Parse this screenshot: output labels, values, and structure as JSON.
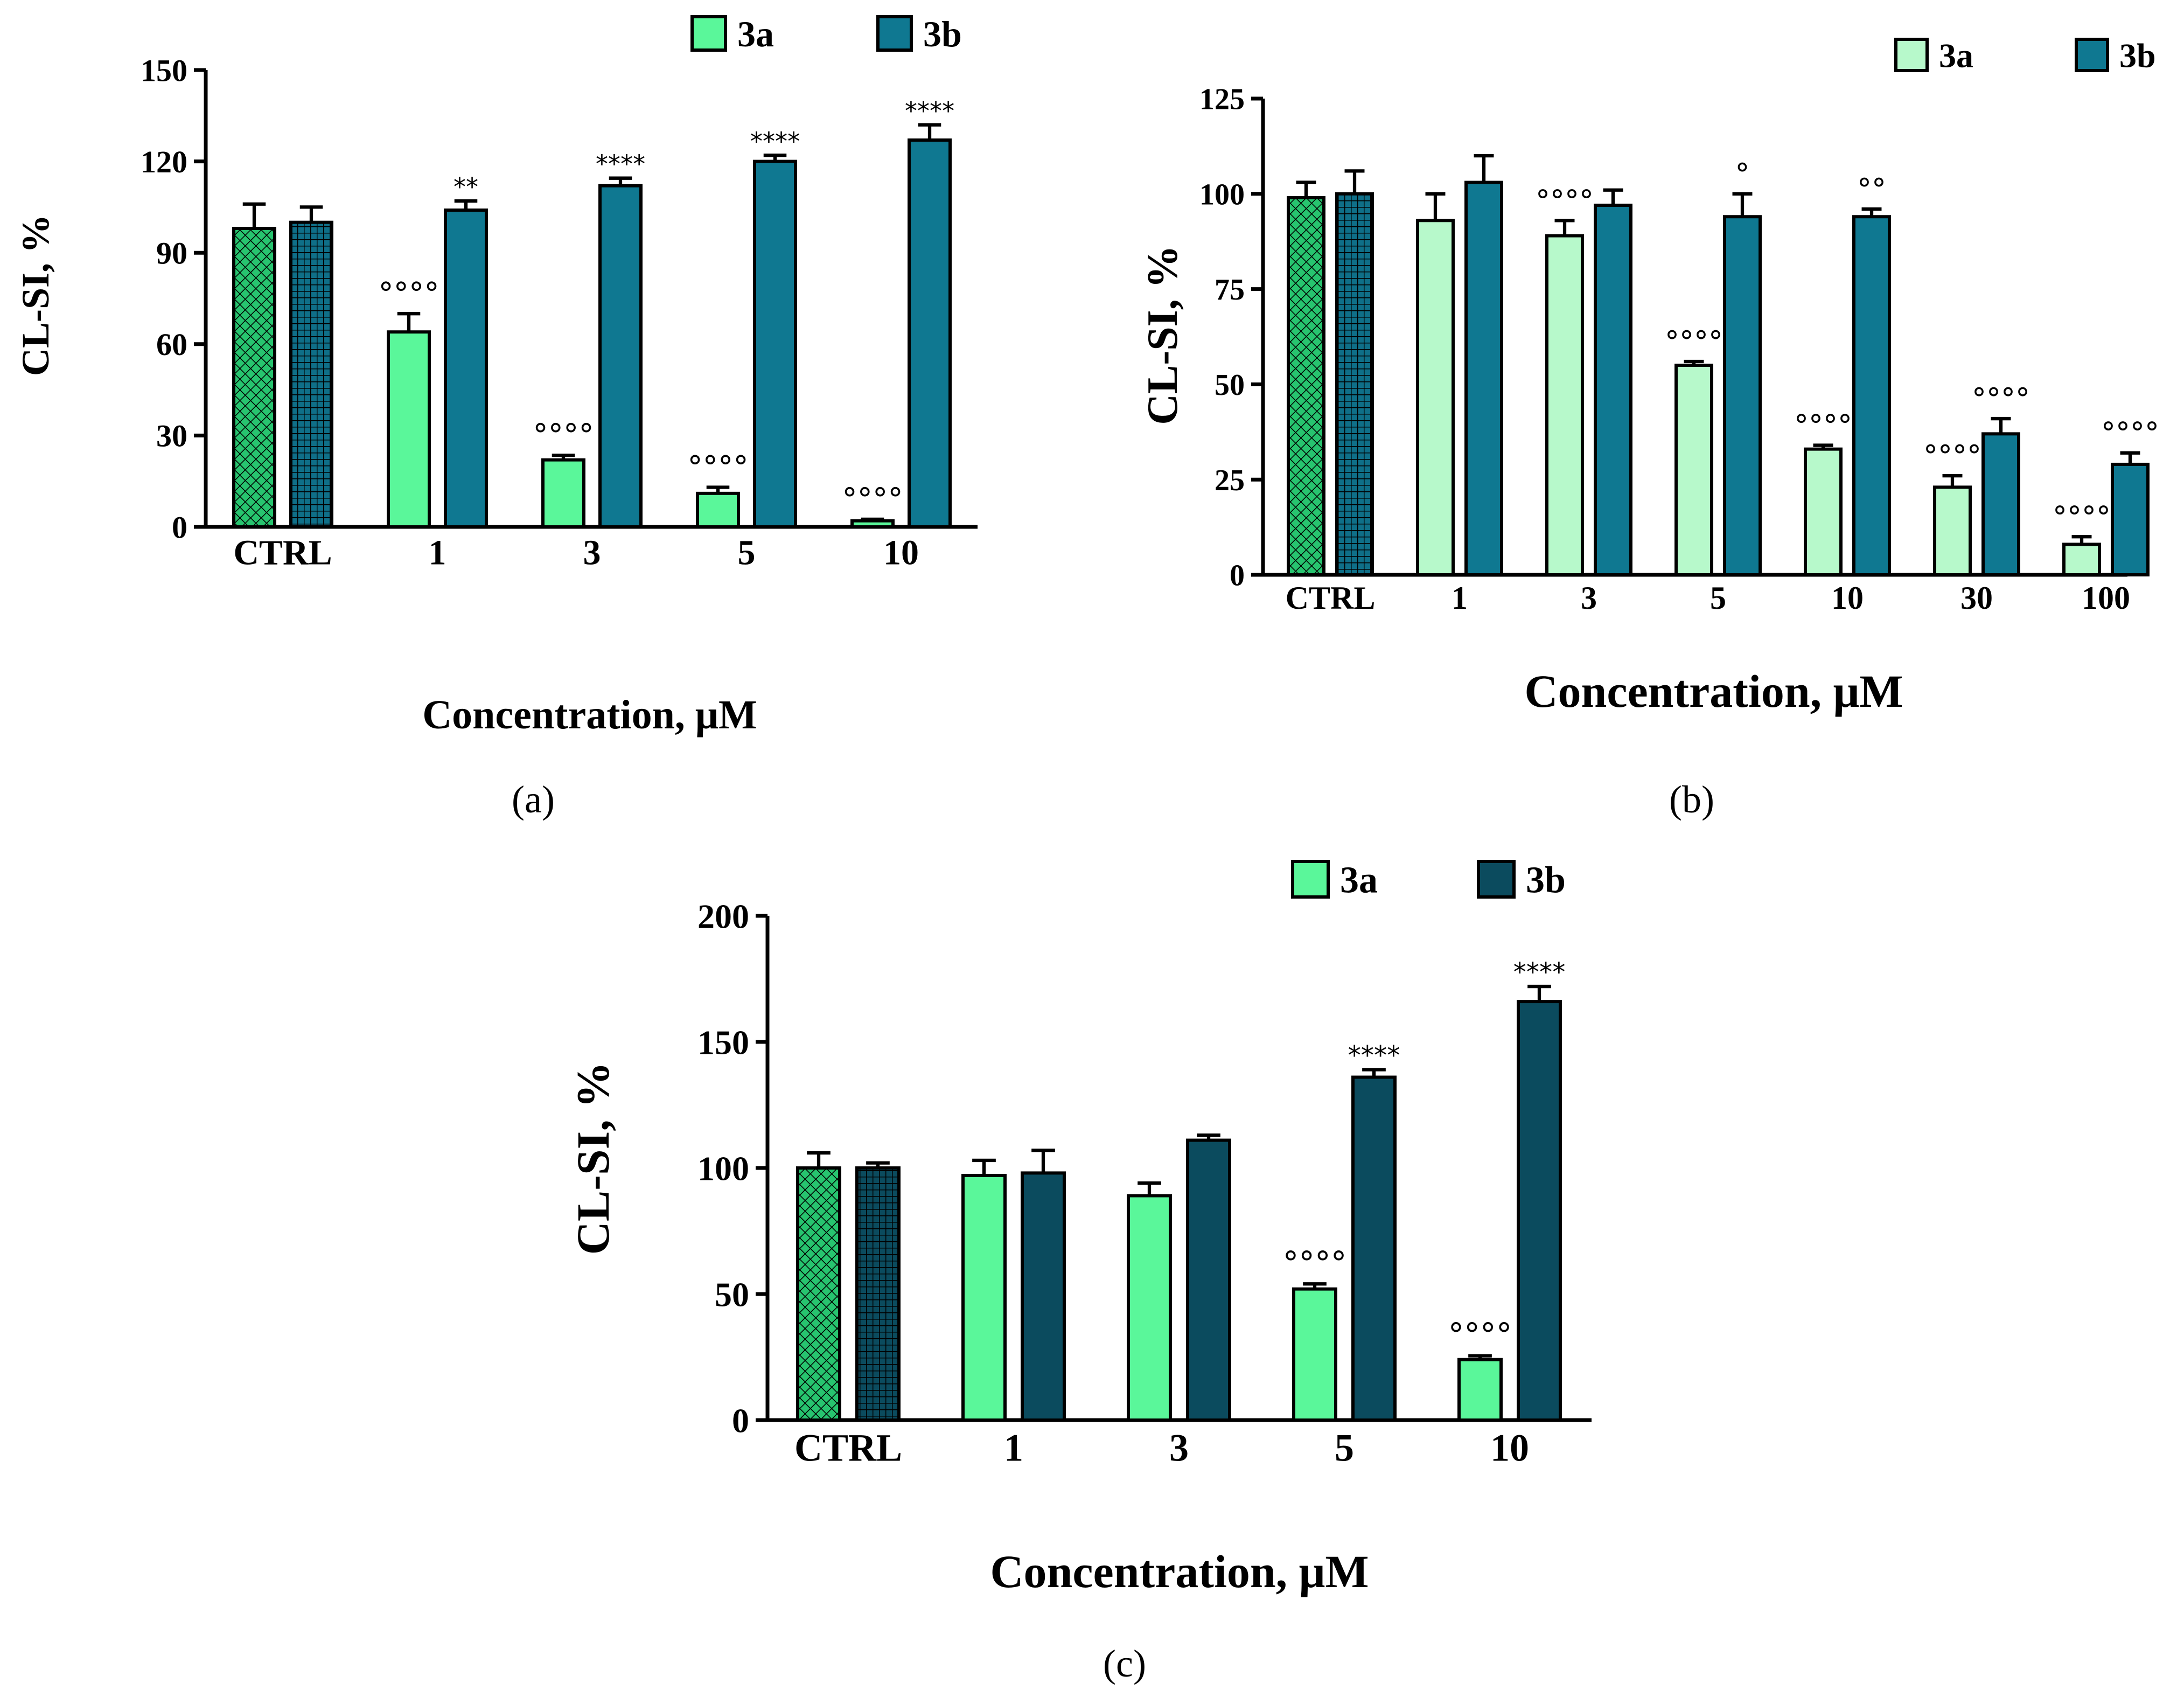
{
  "colors": {
    "a_3a": "#5af79a",
    "a_3b": "#0f7891",
    "b_3a": "#b7f9cb",
    "b_3b": "#0f7891",
    "c_3a": "#5af79a",
    "c_3b": "#0b4b5e",
    "ctrl_3a": "#27c46f",
    "ctrl_3b": "#0f6f88",
    "ctrl_3b_c": "#0b4b5e"
  },
  "chart_data": [
    {
      "id": "a",
      "type": "bar",
      "caption": "(a)",
      "xlabel": "Concentration, μM",
      "ylabel": "CL-SI, %",
      "ylim": [
        0,
        150
      ],
      "yticks": [
        0,
        30,
        60,
        90,
        120,
        150
      ],
      "legend": [
        "3a",
        "3b"
      ],
      "legend_position": "top-right",
      "categories": [
        "CTRL",
        "1",
        "3",
        "5",
        "10"
      ],
      "series": [
        {
          "name": "3a",
          "values": [
            98,
            64,
            22,
            11,
            2
          ],
          "errors": [
            8,
            6,
            1.5,
            2,
            0.5
          ],
          "annotations": [
            "",
            "°°°°",
            "°°°°",
            "°°°°",
            "°°°°"
          ]
        },
        {
          "name": "3b",
          "values": [
            100,
            104,
            112,
            120,
            127
          ],
          "errors": [
            5,
            3,
            2.5,
            2,
            5
          ],
          "annotations": [
            "",
            "**",
            "****",
            "****",
            "****"
          ]
        }
      ]
    },
    {
      "id": "b",
      "type": "bar",
      "caption": "(b)",
      "xlabel": "Concentration, μM",
      "ylabel": "CL-SI, %",
      "ylim": [
        0,
        125
      ],
      "yticks": [
        0,
        25,
        50,
        75,
        100,
        125
      ],
      "legend": [
        "3a",
        "3b"
      ],
      "legend_position": "top-right",
      "categories": [
        "CTRL",
        "1",
        "3",
        "5",
        "10",
        "30",
        "100"
      ],
      "series": [
        {
          "name": "3a",
          "values": [
            99,
            93,
            89,
            55,
            33,
            23,
            8
          ],
          "errors": [
            4,
            7,
            4,
            1,
            1,
            3,
            2
          ],
          "annotations": [
            "",
            "",
            "°°°°",
            "°°°°",
            "°°°°",
            "°°°°",
            "°°°°"
          ]
        },
        {
          "name": "3b",
          "values": [
            100,
            103,
            97,
            94,
            94,
            37,
            29
          ],
          "errors": [
            6,
            7,
            4,
            6,
            2,
            4,
            3
          ],
          "annotations": [
            "",
            "",
            "",
            "°",
            "°°",
            "°°°°",
            "°°°°"
          ]
        }
      ]
    },
    {
      "id": "c",
      "type": "bar",
      "caption": "(c)",
      "xlabel": "Concentration, μM",
      "ylabel": "CL-SI, %",
      "ylim": [
        0,
        200
      ],
      "yticks": [
        0,
        50,
        100,
        150,
        200
      ],
      "legend": [
        "3a",
        "3b"
      ],
      "legend_position": "top-right",
      "categories": [
        "CTRL",
        "1",
        "3",
        "5",
        "10"
      ],
      "series": [
        {
          "name": "3a",
          "values": [
            100,
            97,
            89,
            52,
            24
          ],
          "errors": [
            6,
            6,
            5,
            2,
            1.5
          ],
          "annotations": [
            "",
            "",
            "",
            "°°°°",
            "°°°°"
          ]
        },
        {
          "name": "3b",
          "values": [
            100,
            98,
            111,
            136,
            166
          ],
          "errors": [
            2,
            9,
            2,
            3,
            6
          ],
          "annotations": [
            "",
            "",
            "",
            "****",
            "****"
          ]
        }
      ]
    }
  ]
}
